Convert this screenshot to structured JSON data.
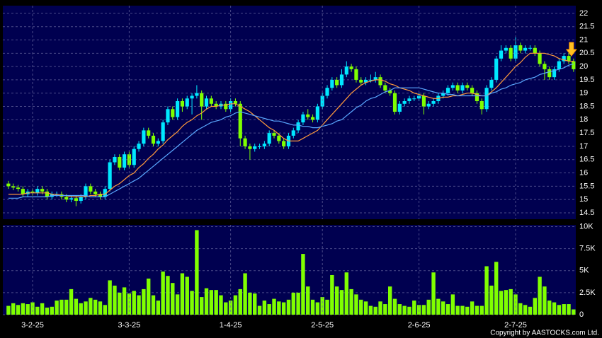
{
  "chart_data": [
    {
      "type": "candlestick",
      "up_color": "#00e8ff",
      "down_color": "#7fff00",
      "ylim": [
        14.26,
        22.29
      ],
      "yticks": [
        14.5,
        15,
        15.5,
        16,
        16.5,
        17,
        17.5,
        18,
        18.5,
        19,
        19.5,
        20,
        20.5,
        21,
        21.5,
        22
      ],
      "grid": true,
      "open": [
        15.6,
        15.5,
        15.45,
        15.4,
        15.2,
        15.3,
        15.25,
        15.4,
        15.3,
        15.1,
        15.2,
        15.2,
        15.1,
        15.0,
        15.05,
        14.95,
        15.1,
        15.5,
        15.3,
        15.2,
        15.1,
        15.4,
        16.4,
        16.6,
        16.2,
        16.7,
        16.3,
        16.9,
        17.1,
        17.6,
        17.4,
        17.1,
        17.2,
        17.9,
        18.4,
        18.1,
        18.7,
        18.5,
        18.8,
        18.9,
        19.0,
        18.5,
        18.8,
        18.6,
        18.5,
        18.6,
        18.4,
        18.7,
        18.6,
        17.3,
        17.0,
        16.9,
        17.0,
        17.0,
        17.1,
        17.5,
        17.4,
        17.2,
        17.0,
        17.4,
        17.6,
        17.9,
        18.2,
        18.1,
        18.0,
        18.5,
        18.9,
        19.2,
        19.5,
        19.3,
        19.7,
        20.0,
        19.9,
        19.5,
        19.4,
        19.5,
        19.5,
        19.6,
        19.3,
        19.1,
        19.0,
        18.3,
        18.6,
        18.7,
        18.8,
        18.8,
        18.9,
        18.5,
        18.6,
        18.7,
        18.9,
        19.0,
        19.2,
        19.3,
        19.1,
        19.3,
        19.2,
        19.0,
        18.7,
        18.4,
        19.2,
        19.5,
        20.3,
        20.6,
        20.7,
        20.3,
        20.8,
        20.6,
        20.7,
        20.7,
        20.5,
        20.1,
        19.9,
        19.6,
        19.9,
        20.2,
        20.4,
        20.2
      ],
      "high": [
        15.7,
        15.6,
        15.55,
        15.5,
        15.4,
        15.4,
        15.5,
        15.5,
        15.4,
        15.3,
        15.3,
        15.3,
        15.2,
        15.15,
        15.15,
        15.2,
        15.6,
        15.6,
        15.4,
        15.3,
        15.5,
        16.5,
        16.7,
        16.7,
        16.8,
        16.8,
        17.0,
        17.2,
        17.7,
        17.7,
        17.5,
        17.3,
        18.0,
        18.5,
        18.5,
        18.8,
        18.8,
        18.9,
        19.0,
        19.3,
        19.1,
        18.9,
        18.9,
        18.7,
        18.7,
        18.7,
        18.8,
        18.8,
        18.7,
        17.4,
        17.1,
        17.1,
        17.1,
        17.2,
        17.6,
        17.6,
        17.5,
        17.3,
        17.5,
        17.7,
        18.0,
        18.3,
        18.4,
        18.2,
        18.6,
        19.0,
        19.3,
        19.6,
        19.6,
        19.9,
        20.2,
        20.1,
        20.0,
        19.6,
        19.6,
        19.7,
        19.8,
        19.7,
        19.4,
        19.2,
        19.1,
        18.7,
        18.8,
        18.9,
        18.9,
        19.0,
        19.0,
        18.7,
        18.8,
        19.0,
        19.1,
        19.3,
        19.4,
        19.4,
        19.4,
        19.4,
        19.3,
        19.1,
        18.8,
        19.3,
        19.6,
        20.4,
        20.8,
        20.8,
        20.8,
        21.1,
        20.9,
        20.8,
        20.8,
        20.8,
        20.6,
        20.2,
        20.0,
        20.0,
        20.3,
        20.5,
        20.5,
        20.3
      ],
      "low": [
        15.4,
        15.35,
        15.3,
        15.1,
        15.1,
        15.15,
        15.15,
        15.2,
        15.0,
        15.0,
        15.1,
        15.0,
        14.9,
        14.9,
        14.75,
        14.85,
        15.0,
        15.2,
        15.1,
        15.0,
        15.0,
        15.3,
        16.3,
        16.1,
        16.1,
        16.2,
        16.2,
        16.8,
        17.0,
        17.3,
        17.0,
        17.0,
        17.1,
        17.8,
        18.0,
        18.0,
        18.3,
        18.4,
        18.2,
        18.8,
        18.0,
        18.4,
        18.5,
        18.4,
        18.4,
        18.3,
        18.3,
        18.5,
        17.0,
        16.9,
        16.5,
        16.8,
        16.9,
        16.9,
        17.0,
        17.3,
        17.1,
        16.9,
        16.9,
        17.3,
        17.5,
        17.8,
        18.0,
        17.9,
        17.9,
        18.4,
        18.8,
        19.1,
        19.2,
        19.2,
        19.6,
        19.8,
        19.4,
        19.3,
        19.3,
        19.4,
        19.4,
        19.2,
        19.0,
        18.9,
        18.2,
        18.2,
        18.5,
        18.6,
        18.7,
        18.7,
        18.2,
        18.4,
        18.5,
        18.6,
        18.8,
        18.9,
        19.1,
        19.0,
        19.0,
        19.1,
        18.9,
        18.6,
        18.2,
        18.3,
        19.1,
        19.4,
        20.2,
        20.5,
        20.2,
        20.2,
        20.5,
        20.5,
        20.6,
        20.4,
        20.0,
        19.5,
        19.5,
        19.5,
        19.8,
        20.1,
        20.1,
        19.8
      ],
      "close": [
        15.5,
        15.45,
        15.4,
        15.2,
        15.3,
        15.25,
        15.4,
        15.3,
        15.1,
        15.2,
        15.2,
        15.1,
        15.0,
        15.05,
        14.95,
        15.1,
        15.5,
        15.3,
        15.2,
        15.1,
        15.4,
        16.4,
        16.6,
        16.2,
        16.7,
        16.3,
        16.9,
        17.1,
        17.6,
        17.4,
        17.1,
        17.2,
        17.9,
        18.4,
        18.1,
        18.7,
        18.5,
        18.8,
        18.9,
        19.0,
        18.5,
        18.8,
        18.6,
        18.5,
        18.6,
        18.4,
        18.7,
        18.6,
        17.3,
        17.0,
        16.9,
        17.0,
        17.0,
        17.1,
        17.5,
        17.4,
        17.2,
        17.0,
        17.4,
        17.6,
        17.9,
        18.2,
        18.1,
        18.0,
        18.5,
        18.9,
        19.2,
        19.5,
        19.3,
        19.7,
        20.0,
        19.9,
        19.5,
        19.4,
        19.5,
        19.5,
        19.6,
        19.3,
        19.1,
        19.0,
        18.3,
        18.6,
        18.7,
        18.8,
        18.8,
        18.9,
        18.5,
        18.6,
        18.7,
        18.9,
        19.0,
        19.2,
        19.3,
        19.1,
        19.3,
        19.2,
        19.0,
        18.7,
        18.4,
        19.2,
        19.5,
        20.3,
        20.6,
        20.7,
        20.3,
        20.8,
        20.6,
        20.7,
        20.7,
        20.5,
        20.1,
        19.9,
        19.6,
        19.9,
        20.2,
        20.4,
        20.2,
        19.9
      ],
      "series": [
        {
          "color": "#ff9a3c",
          "values": [
            15.2,
            15.2,
            15.2,
            15.2,
            15.25,
            15.25,
            15.25,
            15.25,
            15.25,
            15.2,
            15.2,
            15.15,
            15.15,
            15.1,
            15.1,
            15.1,
            15.1,
            15.15,
            15.15,
            15.2,
            15.2,
            15.35,
            15.5,
            15.6,
            15.75,
            15.9,
            16.0,
            16.2,
            16.35,
            16.55,
            16.7,
            16.9,
            17.05,
            17.25,
            17.4,
            17.55,
            17.75,
            17.9,
            18.0,
            18.15,
            18.25,
            18.4,
            18.5,
            18.5,
            18.55,
            18.55,
            18.6,
            18.6,
            18.5,
            18.4,
            18.3,
            18.15,
            18.0,
            17.85,
            17.7,
            17.6,
            17.45,
            17.3,
            17.2,
            17.2,
            17.2,
            17.3,
            17.4,
            17.5,
            17.6,
            17.8,
            18.0,
            18.2,
            18.4,
            18.6,
            18.8,
            19.0,
            19.15,
            19.3,
            19.4,
            19.45,
            19.5,
            19.5,
            19.45,
            19.35,
            19.3,
            19.2,
            19.15,
            19.1,
            19.0,
            18.95,
            18.9,
            18.85,
            18.8,
            18.8,
            18.85,
            18.85,
            18.9,
            18.9,
            18.95,
            19.0,
            19.0,
            18.95,
            18.9,
            18.9,
            19.05,
            19.2,
            19.4,
            19.6,
            19.8,
            20.0,
            20.15,
            20.35,
            20.5,
            20.5,
            20.5,
            20.5,
            20.45,
            20.4,
            20.3,
            20.25,
            20.2,
            20.2
          ]
        },
        {
          "color": "#5aa8ff",
          "values": [
            15.05,
            15.05,
            15.05,
            15.1,
            15.1,
            15.1,
            15.1,
            15.1,
            15.1,
            15.15,
            15.15,
            15.15,
            15.15,
            15.15,
            15.15,
            15.15,
            15.15,
            15.1,
            15.1,
            15.1,
            15.1,
            15.2,
            15.3,
            15.4,
            15.5,
            15.6,
            15.7,
            15.8,
            15.95,
            16.1,
            16.25,
            16.4,
            16.55,
            16.7,
            16.85,
            17.0,
            17.15,
            17.3,
            17.45,
            17.6,
            17.7,
            17.8,
            17.9,
            17.95,
            18.0,
            18.1,
            18.15,
            18.25,
            18.3,
            18.25,
            18.2,
            18.15,
            18.1,
            18.05,
            18.0,
            17.95,
            17.95,
            17.9,
            17.85,
            17.8,
            17.8,
            17.75,
            17.75,
            17.7,
            17.7,
            17.75,
            17.8,
            17.85,
            17.95,
            18.0,
            18.15,
            18.3,
            18.45,
            18.55,
            18.7,
            18.8,
            18.85,
            18.95,
            19.05,
            19.1,
            19.2,
            19.2,
            19.2,
            19.2,
            19.2,
            19.2,
            19.15,
            19.1,
            19.05,
            19.0,
            19.0,
            18.95,
            18.95,
            18.9,
            18.9,
            18.9,
            18.9,
            18.9,
            18.9,
            18.9,
            19.0,
            19.05,
            19.15,
            19.2,
            19.3,
            19.35,
            19.4,
            19.5,
            19.55,
            19.6,
            19.7,
            19.75,
            19.8,
            19.85,
            19.9,
            19.95,
            20.05,
            20.1
          ]
        }
      ]
    },
    {
      "type": "bar",
      "color": "#80ff00",
      "categories": [
        null,
        null,
        null,
        null,
        null,
        "3-2-25",
        null,
        null,
        null,
        null,
        null,
        null,
        null,
        null,
        null,
        null,
        null,
        null,
        null,
        null,
        null,
        null,
        null,
        null,
        null,
        "3-3-25",
        null,
        null,
        null,
        null,
        null,
        null,
        null,
        null,
        null,
        null,
        null,
        null,
        null,
        null,
        null,
        null,
        null,
        null,
        null,
        null,
        "1-4-25",
        null,
        null,
        null,
        null,
        null,
        null,
        null,
        null,
        null,
        null,
        null,
        null,
        null,
        null,
        null,
        null,
        null,
        null,
        "2-5-25",
        null,
        null,
        null,
        null,
        null,
        null,
        null,
        null,
        null,
        null,
        null,
        null,
        null,
        null,
        null,
        null,
        null,
        null,
        null,
        "2-6-25",
        null,
        null,
        null,
        null,
        null,
        null,
        null,
        null,
        null,
        null,
        null,
        null,
        null,
        null,
        null,
        null,
        null,
        null,
        null,
        "2-7-25",
        null,
        null,
        null,
        null,
        null,
        null,
        null,
        null,
        null,
        null,
        null,
        null
      ],
      "values": [
        1000,
        1300,
        1100,
        1300,
        1200,
        1400,
        900,
        1300,
        800,
        900,
        1600,
        1700,
        1700,
        2900,
        1800,
        1300,
        1500,
        1900,
        1700,
        1500,
        1100,
        3900,
        3300,
        2500,
        3100,
        2400,
        2700,
        2200,
        2900,
        4100,
        2200,
        1600,
        4900,
        4400,
        3600,
        2300,
        4700,
        4300,
        2700,
        9600,
        2000,
        3000,
        2800,
        2800,
        2200,
        1400,
        1600,
        2200,
        2900,
        4700,
        2500,
        2400,
        1000,
        1600,
        1200,
        1800,
        1500,
        1400,
        1700,
        2500,
        2500,
        6900,
        3200,
        1700,
        1400,
        2000,
        1700,
        4500,
        3200,
        2800,
        4800,
        2900,
        2300,
        1700,
        1500,
        1000,
        900,
        1500,
        1200,
        3200,
        1800,
        1200,
        1000,
        900,
        1600,
        1100,
        1100,
        1700,
        4800,
        1800,
        1500,
        1200,
        2300,
        1000,
        1000,
        900,
        1500,
        1000,
        1000,
        5500,
        3300,
        6000,
        2700,
        2800,
        2900,
        2300,
        1300,
        1100,
        900,
        1900,
        4300,
        3200,
        1600,
        1400,
        1100,
        1200,
        1200,
        600
      ],
      "ylim": [
        0,
        10200
      ],
      "yticks": [
        0,
        {
          "value": 2500,
          "label": "2.5K"
        },
        {
          "value": 5000,
          "label": "5K"
        },
        {
          "value": 7500,
          "label": "7.5K"
        },
        {
          "value": 10000,
          "label": "10K"
        }
      ],
      "grid": true,
      "source": "Copyright by AASTOCKS.com Ltd."
    }
  ]
}
